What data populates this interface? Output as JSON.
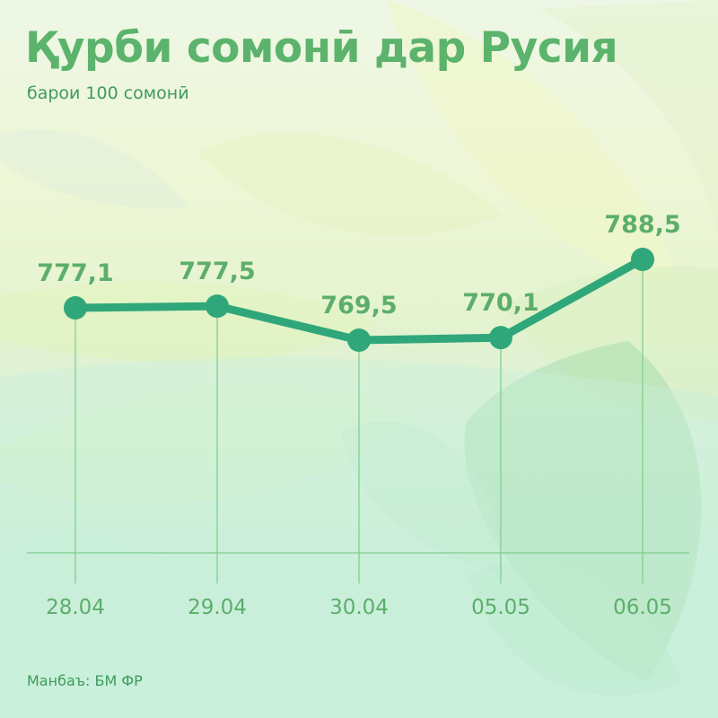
{
  "title": "Қурби сомонӣ дар Русия",
  "subtitle": "барои 100 сомонӣ",
  "source": "Манбаъ: БМ ФР",
  "colors": {
    "line": "#2fa77a",
    "text": "#5cae6a",
    "title": "#5cb36c",
    "guide": "#79cf86"
  },
  "chart_data": {
    "type": "line",
    "categories": [
      "28.04",
      "29.04",
      "30.04",
      "05.05",
      "06.05"
    ],
    "values": [
      777.1,
      777.5,
      769.5,
      770.1,
      788.5
    ],
    "labels": [
      "777,1",
      "777,5",
      "769,5",
      "770,1",
      "788,5"
    ],
    "title": "Қурби сомонӣ дар Русия",
    "subtitle": "барои 100 сомонӣ",
    "xlabel": "",
    "ylabel": "",
    "grid": false,
    "legend": "none"
  }
}
